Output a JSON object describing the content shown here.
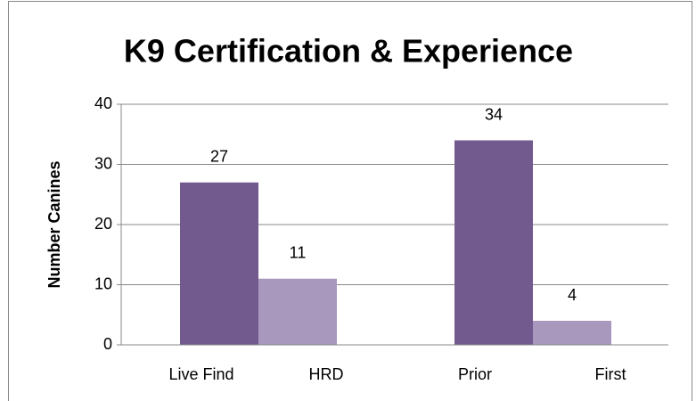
{
  "chart_data": {
    "type": "bar",
    "title": "K9 Certification & Experience",
    "y_label": "Number Canines",
    "categories": [
      "Live Find",
      "HRD",
      "Prior",
      "First"
    ],
    "values": [
      27,
      11,
      34,
      4
    ],
    "colors": [
      "#725a8f",
      "#a898be",
      "#725a8f",
      "#a898be"
    ],
    "ylim": [
      0,
      40
    ],
    "yticks": [
      0,
      10,
      20,
      30,
      40
    ],
    "grid": true
  }
}
